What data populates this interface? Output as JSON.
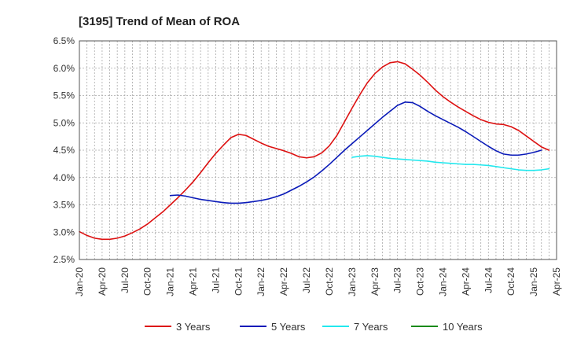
{
  "chart_data": {
    "type": "line",
    "title": "[3195]  Trend of Mean of ROA",
    "xlabel": "",
    "ylabel": "",
    "ylim": [
      2.5,
      6.5
    ],
    "y_ticks": [
      "2.5%",
      "3.0%",
      "3.5%",
      "4.0%",
      "4.5%",
      "5.0%",
      "5.5%",
      "6.0%",
      "6.5%"
    ],
    "x_ticks": [
      "Jan-20",
      "Apr-20",
      "Jul-20",
      "Oct-20",
      "Jan-21",
      "Apr-21",
      "Jul-21",
      "Oct-21",
      "Jan-22",
      "Apr-22",
      "Jul-22",
      "Oct-22",
      "Jan-23",
      "Apr-23",
      "Jul-23",
      "Oct-23",
      "Jan-24",
      "Apr-24",
      "Jul-24",
      "Oct-24",
      "Jan-25",
      "Apr-25"
    ],
    "grid": true,
    "legend_position": "bottom",
    "series": [
      {
        "name": "3 Years",
        "color": "#dd1111",
        "points": [
          [
            "Jan-20",
            3.01
          ],
          [
            "Feb-20",
            2.94
          ],
          [
            "Mar-20",
            2.89
          ],
          [
            "Apr-20",
            2.87
          ],
          [
            "May-20",
            2.87
          ],
          [
            "Jun-20",
            2.89
          ],
          [
            "Jul-20",
            2.93
          ],
          [
            "Aug-20",
            2.99
          ],
          [
            "Sep-20",
            3.06
          ],
          [
            "Oct-20",
            3.15
          ],
          [
            "Nov-20",
            3.26
          ],
          [
            "Dec-20",
            3.37
          ],
          [
            "Jan-21",
            3.5
          ],
          [
            "Feb-21",
            3.63
          ],
          [
            "Mar-21",
            3.77
          ],
          [
            "Apr-21",
            3.92
          ],
          [
            "May-21",
            4.09
          ],
          [
            "Jun-21",
            4.27
          ],
          [
            "Jul-21",
            4.44
          ],
          [
            "Aug-21",
            4.59
          ],
          [
            "Sep-21",
            4.73
          ],
          [
            "Oct-21",
            4.79
          ],
          [
            "Nov-21",
            4.77
          ],
          [
            "Dec-21",
            4.7
          ],
          [
            "Jan-22",
            4.63
          ],
          [
            "Feb-22",
            4.57
          ],
          [
            "Mar-22",
            4.53
          ],
          [
            "Apr-22",
            4.49
          ],
          [
            "May-22",
            4.44
          ],
          [
            "Jun-22",
            4.38
          ],
          [
            "Jul-22",
            4.36
          ],
          [
            "Aug-22",
            4.38
          ],
          [
            "Sep-22",
            4.45
          ],
          [
            "Oct-22",
            4.58
          ],
          [
            "Nov-22",
            4.77
          ],
          [
            "Dec-22",
            5.02
          ],
          [
            "Jan-23",
            5.27
          ],
          [
            "Feb-23",
            5.51
          ],
          [
            "Mar-23",
            5.73
          ],
          [
            "Apr-23",
            5.9
          ],
          [
            "May-23",
            6.02
          ],
          [
            "Jun-23",
            6.1
          ],
          [
            "Jul-23",
            6.12
          ],
          [
            "Aug-23",
            6.08
          ],
          [
            "Sep-23",
            5.98
          ],
          [
            "Oct-23",
            5.87
          ],
          [
            "Nov-23",
            5.74
          ],
          [
            "Dec-23",
            5.6
          ],
          [
            "Jan-24",
            5.48
          ],
          [
            "Feb-24",
            5.38
          ],
          [
            "Mar-24",
            5.29
          ],
          [
            "Apr-24",
            5.21
          ],
          [
            "May-24",
            5.13
          ],
          [
            "Jun-24",
            5.06
          ],
          [
            "Jul-24",
            5.01
          ],
          [
            "Aug-24",
            4.98
          ],
          [
            "Sep-24",
            4.97
          ],
          [
            "Oct-24",
            4.93
          ],
          [
            "Nov-24",
            4.86
          ],
          [
            "Dec-24",
            4.76
          ],
          [
            "Jan-25",
            4.66
          ],
          [
            "Feb-25",
            4.56
          ],
          [
            "Mar-25",
            4.5
          ]
        ]
      },
      {
        "name": "5 Years",
        "color": "#0a1ab8",
        "points": [
          [
            "Jan-21",
            3.67
          ],
          [
            "Feb-21",
            3.68
          ],
          [
            "Mar-21",
            3.66
          ],
          [
            "Apr-21",
            3.63
          ],
          [
            "May-21",
            3.6
          ],
          [
            "Jun-21",
            3.58
          ],
          [
            "Jul-21",
            3.56
          ],
          [
            "Aug-21",
            3.54
          ],
          [
            "Sep-21",
            3.53
          ],
          [
            "Oct-21",
            3.53
          ],
          [
            "Nov-21",
            3.54
          ],
          [
            "Dec-21",
            3.56
          ],
          [
            "Jan-22",
            3.58
          ],
          [
            "Feb-22",
            3.61
          ],
          [
            "Mar-22",
            3.65
          ],
          [
            "Apr-22",
            3.7
          ],
          [
            "May-22",
            3.77
          ],
          [
            "Jun-22",
            3.84
          ],
          [
            "Jul-22",
            3.92
          ],
          [
            "Aug-22",
            4.01
          ],
          [
            "Sep-22",
            4.12
          ],
          [
            "Oct-22",
            4.24
          ],
          [
            "Nov-22",
            4.37
          ],
          [
            "Dec-22",
            4.5
          ],
          [
            "Jan-23",
            4.62
          ],
          [
            "Feb-23",
            4.74
          ],
          [
            "Mar-23",
            4.86
          ],
          [
            "Apr-23",
            4.98
          ],
          [
            "May-23",
            5.1
          ],
          [
            "Jun-23",
            5.21
          ],
          [
            "Jul-23",
            5.32
          ],
          [
            "Aug-23",
            5.38
          ],
          [
            "Sep-23",
            5.37
          ],
          [
            "Oct-23",
            5.3
          ],
          [
            "Nov-23",
            5.21
          ],
          [
            "Dec-23",
            5.13
          ],
          [
            "Jan-24",
            5.06
          ],
          [
            "Feb-24",
            4.99
          ],
          [
            "Mar-24",
            4.92
          ],
          [
            "Apr-24",
            4.84
          ],
          [
            "May-24",
            4.75
          ],
          [
            "Jun-24",
            4.66
          ],
          [
            "Jul-24",
            4.57
          ],
          [
            "Aug-24",
            4.49
          ],
          [
            "Sep-24",
            4.43
          ],
          [
            "Oct-24",
            4.41
          ],
          [
            "Nov-24",
            4.41
          ],
          [
            "Dec-24",
            4.43
          ],
          [
            "Jan-25",
            4.46
          ],
          [
            "Feb-25",
            4.5
          ]
        ]
      },
      {
        "name": "7 Years",
        "color": "#22e8ee",
        "points": [
          [
            "Jan-23",
            4.37
          ],
          [
            "Feb-23",
            4.39
          ],
          [
            "Mar-23",
            4.4
          ],
          [
            "Apr-23",
            4.39
          ],
          [
            "May-23",
            4.37
          ],
          [
            "Jun-23",
            4.35
          ],
          [
            "Jul-23",
            4.34
          ],
          [
            "Aug-23",
            4.33
          ],
          [
            "Sep-23",
            4.32
          ],
          [
            "Oct-23",
            4.31
          ],
          [
            "Nov-23",
            4.3
          ],
          [
            "Dec-23",
            4.28
          ],
          [
            "Jan-24",
            4.27
          ],
          [
            "Feb-24",
            4.26
          ],
          [
            "Mar-24",
            4.25
          ],
          [
            "Apr-24",
            4.24
          ],
          [
            "May-24",
            4.24
          ],
          [
            "Jun-24",
            4.23
          ],
          [
            "Jul-24",
            4.22
          ],
          [
            "Aug-24",
            4.2
          ],
          [
            "Sep-24",
            4.18
          ],
          [
            "Oct-24",
            4.16
          ],
          [
            "Nov-24",
            4.14
          ],
          [
            "Dec-24",
            4.13
          ],
          [
            "Jan-25",
            4.13
          ],
          [
            "Feb-25",
            4.14
          ],
          [
            "Mar-25",
            4.16
          ]
        ]
      },
      {
        "name": "10 Years",
        "color": "#1a8a1a",
        "points": []
      }
    ]
  }
}
